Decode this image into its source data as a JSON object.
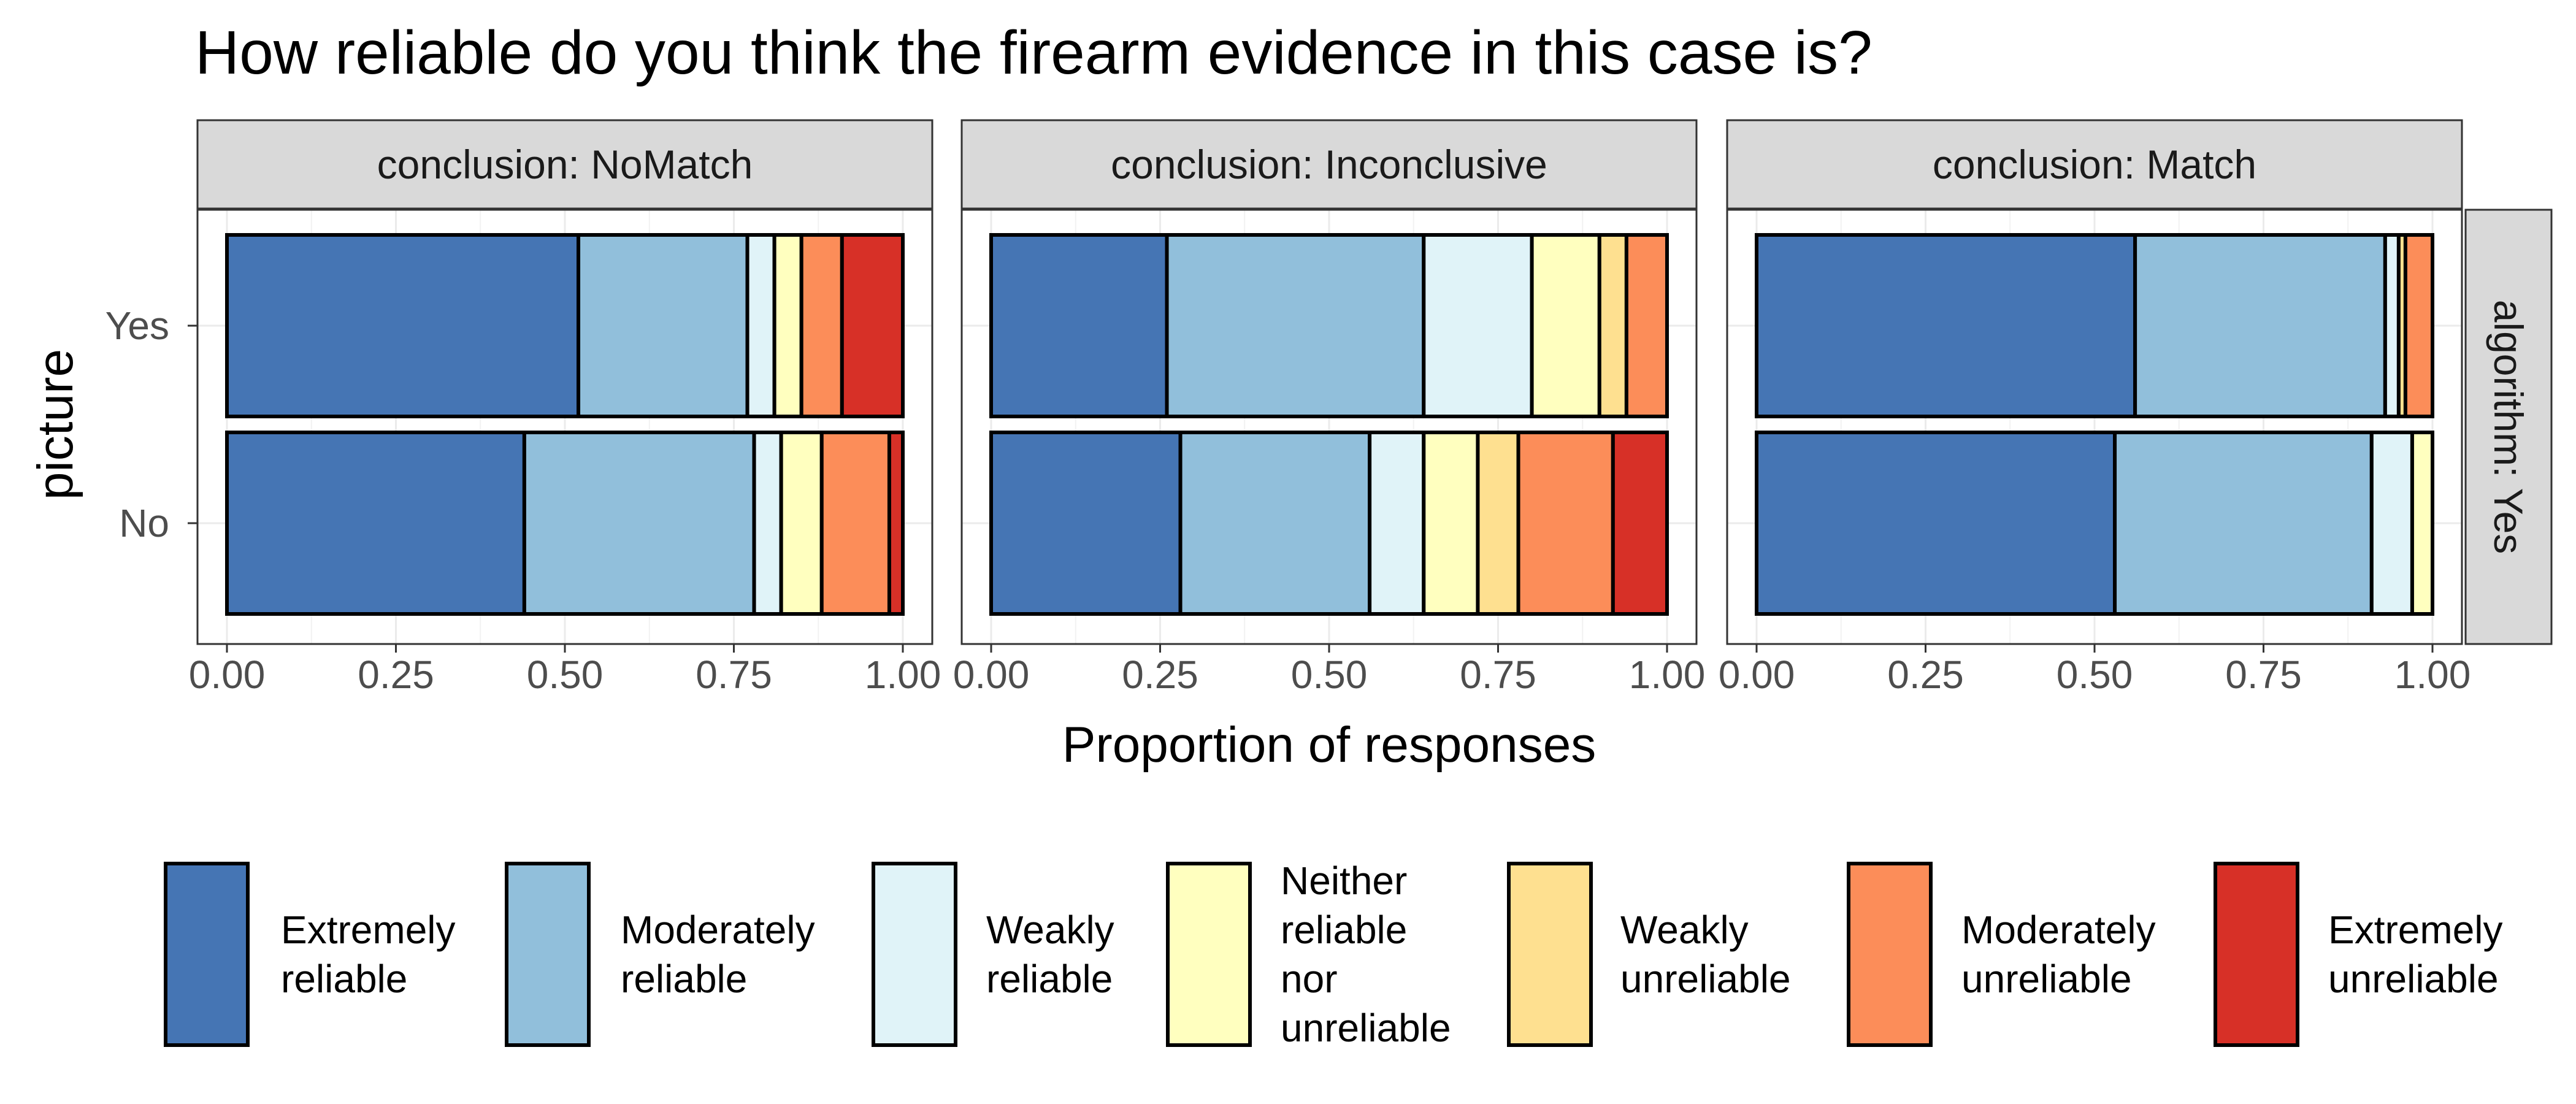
{
  "chart_data": {
    "type": "bar",
    "orientation": "horizontal",
    "stacked": true,
    "title": "How reliable do you think the firearm evidence in this case is?",
    "xlabel": "Proportion of responses",
    "ylabel": "picture",
    "xlim": [
      0,
      1
    ],
    "x_ticks": [
      "0.00",
      "0.25",
      "0.50",
      "0.75",
      "1.00"
    ],
    "x_tick_values": [
      0,
      0.25,
      0.5,
      0.75,
      1
    ],
    "categories": [
      "Yes",
      "No"
    ],
    "row_strip": "algorithm: Yes",
    "grid": true,
    "legend_position": "bottom",
    "levels": [
      {
        "name": "Extremely reliable",
        "lines": [
          "Extremely",
          "reliable"
        ],
        "color": "#4575b4"
      },
      {
        "name": "Moderately reliable",
        "lines": [
          "Moderately",
          "reliable"
        ],
        "color": "#91bfdb"
      },
      {
        "name": "Weakly reliable",
        "lines": [
          "Weakly",
          "reliable"
        ],
        "color": "#e0f3f8"
      },
      {
        "name": "Neither reliable nor unreliable",
        "lines": [
          "Neither",
          "reliable",
          "nor",
          "unreliable"
        ],
        "color": "#ffffbf"
      },
      {
        "name": "Weakly unreliable",
        "lines": [
          "Weakly",
          "unreliable"
        ],
        "color": "#fee090"
      },
      {
        "name": "Moderately unreliable",
        "lines": [
          "Moderately",
          "unreliable"
        ],
        "color": "#fc8d59"
      },
      {
        "name": "Extremely unreliable",
        "lines": [
          "Extremely",
          "unreliable"
        ],
        "color": "#d73027"
      }
    ],
    "panels": [
      {
        "strip": "conclusion: NoMatch",
        "bars": {
          "Yes": [
            0.52,
            0.25,
            0.04,
            0.04,
            0,
            0.06,
            0.09
          ],
          "No": [
            0.44,
            0.34,
            0.04,
            0.06,
            0,
            0.1,
            0.02
          ]
        }
      },
      {
        "strip": "conclusion: Inconclusive",
        "bars": {
          "Yes": [
            0.26,
            0.38,
            0.16,
            0.1,
            0.04,
            0.06,
            0
          ],
          "No": [
            0.28,
            0.28,
            0.08,
            0.08,
            0.06,
            0.14,
            0.08
          ]
        }
      },
      {
        "strip": "conclusion: Match",
        "bars": {
          "Yes": [
            0.56,
            0.37,
            0.02,
            0,
            0.01,
            0.04,
            0
          ],
          "No": [
            0.53,
            0.38,
            0.06,
            0.03,
            0,
            0,
            0
          ]
        }
      }
    ]
  }
}
